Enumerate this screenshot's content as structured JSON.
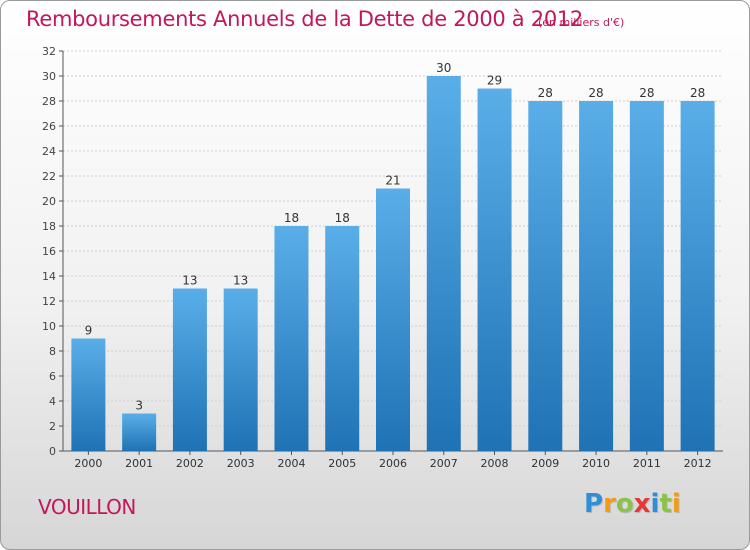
{
  "chart_data": {
    "type": "bar",
    "title": "Remboursements Annuels de la Dette de 2000 à 2012",
    "subtitle": "(en milliers d'€)",
    "categories": [
      "2000",
      "2001",
      "2002",
      "2003",
      "2004",
      "2005",
      "2006",
      "2007",
      "2008",
      "2009",
      "2010",
      "2011",
      "2012"
    ],
    "values": [
      9,
      3,
      13,
      13,
      18,
      18,
      21,
      30,
      29,
      28,
      28,
      28,
      28
    ],
    "ylim": [
      0,
      32
    ],
    "yticks": [
      0,
      2,
      4,
      6,
      8,
      10,
      12,
      14,
      16,
      18,
      20,
      22,
      24,
      26,
      28,
      30,
      32
    ],
    "xlabel": "",
    "ylabel": "",
    "grid": true
  },
  "footer": {
    "commune": "VOUILLON",
    "logo_letters": [
      {
        "ch": "P",
        "color": "#2e8fd6"
      },
      {
        "ch": "r",
        "color": "#f39c12"
      },
      {
        "ch": "o",
        "color": "#8bc34a"
      },
      {
        "ch": "x",
        "color": "#e53935"
      },
      {
        "ch": "i",
        "color": "#2e8fd6"
      },
      {
        "ch": "t",
        "color": "#8bc34a"
      },
      {
        "ch": "i",
        "color": "#f39c12"
      }
    ]
  },
  "colors": {
    "accent": "#c2185b",
    "bar_top": "#5aaee8",
    "bar_bottom": "#1f72b4"
  }
}
